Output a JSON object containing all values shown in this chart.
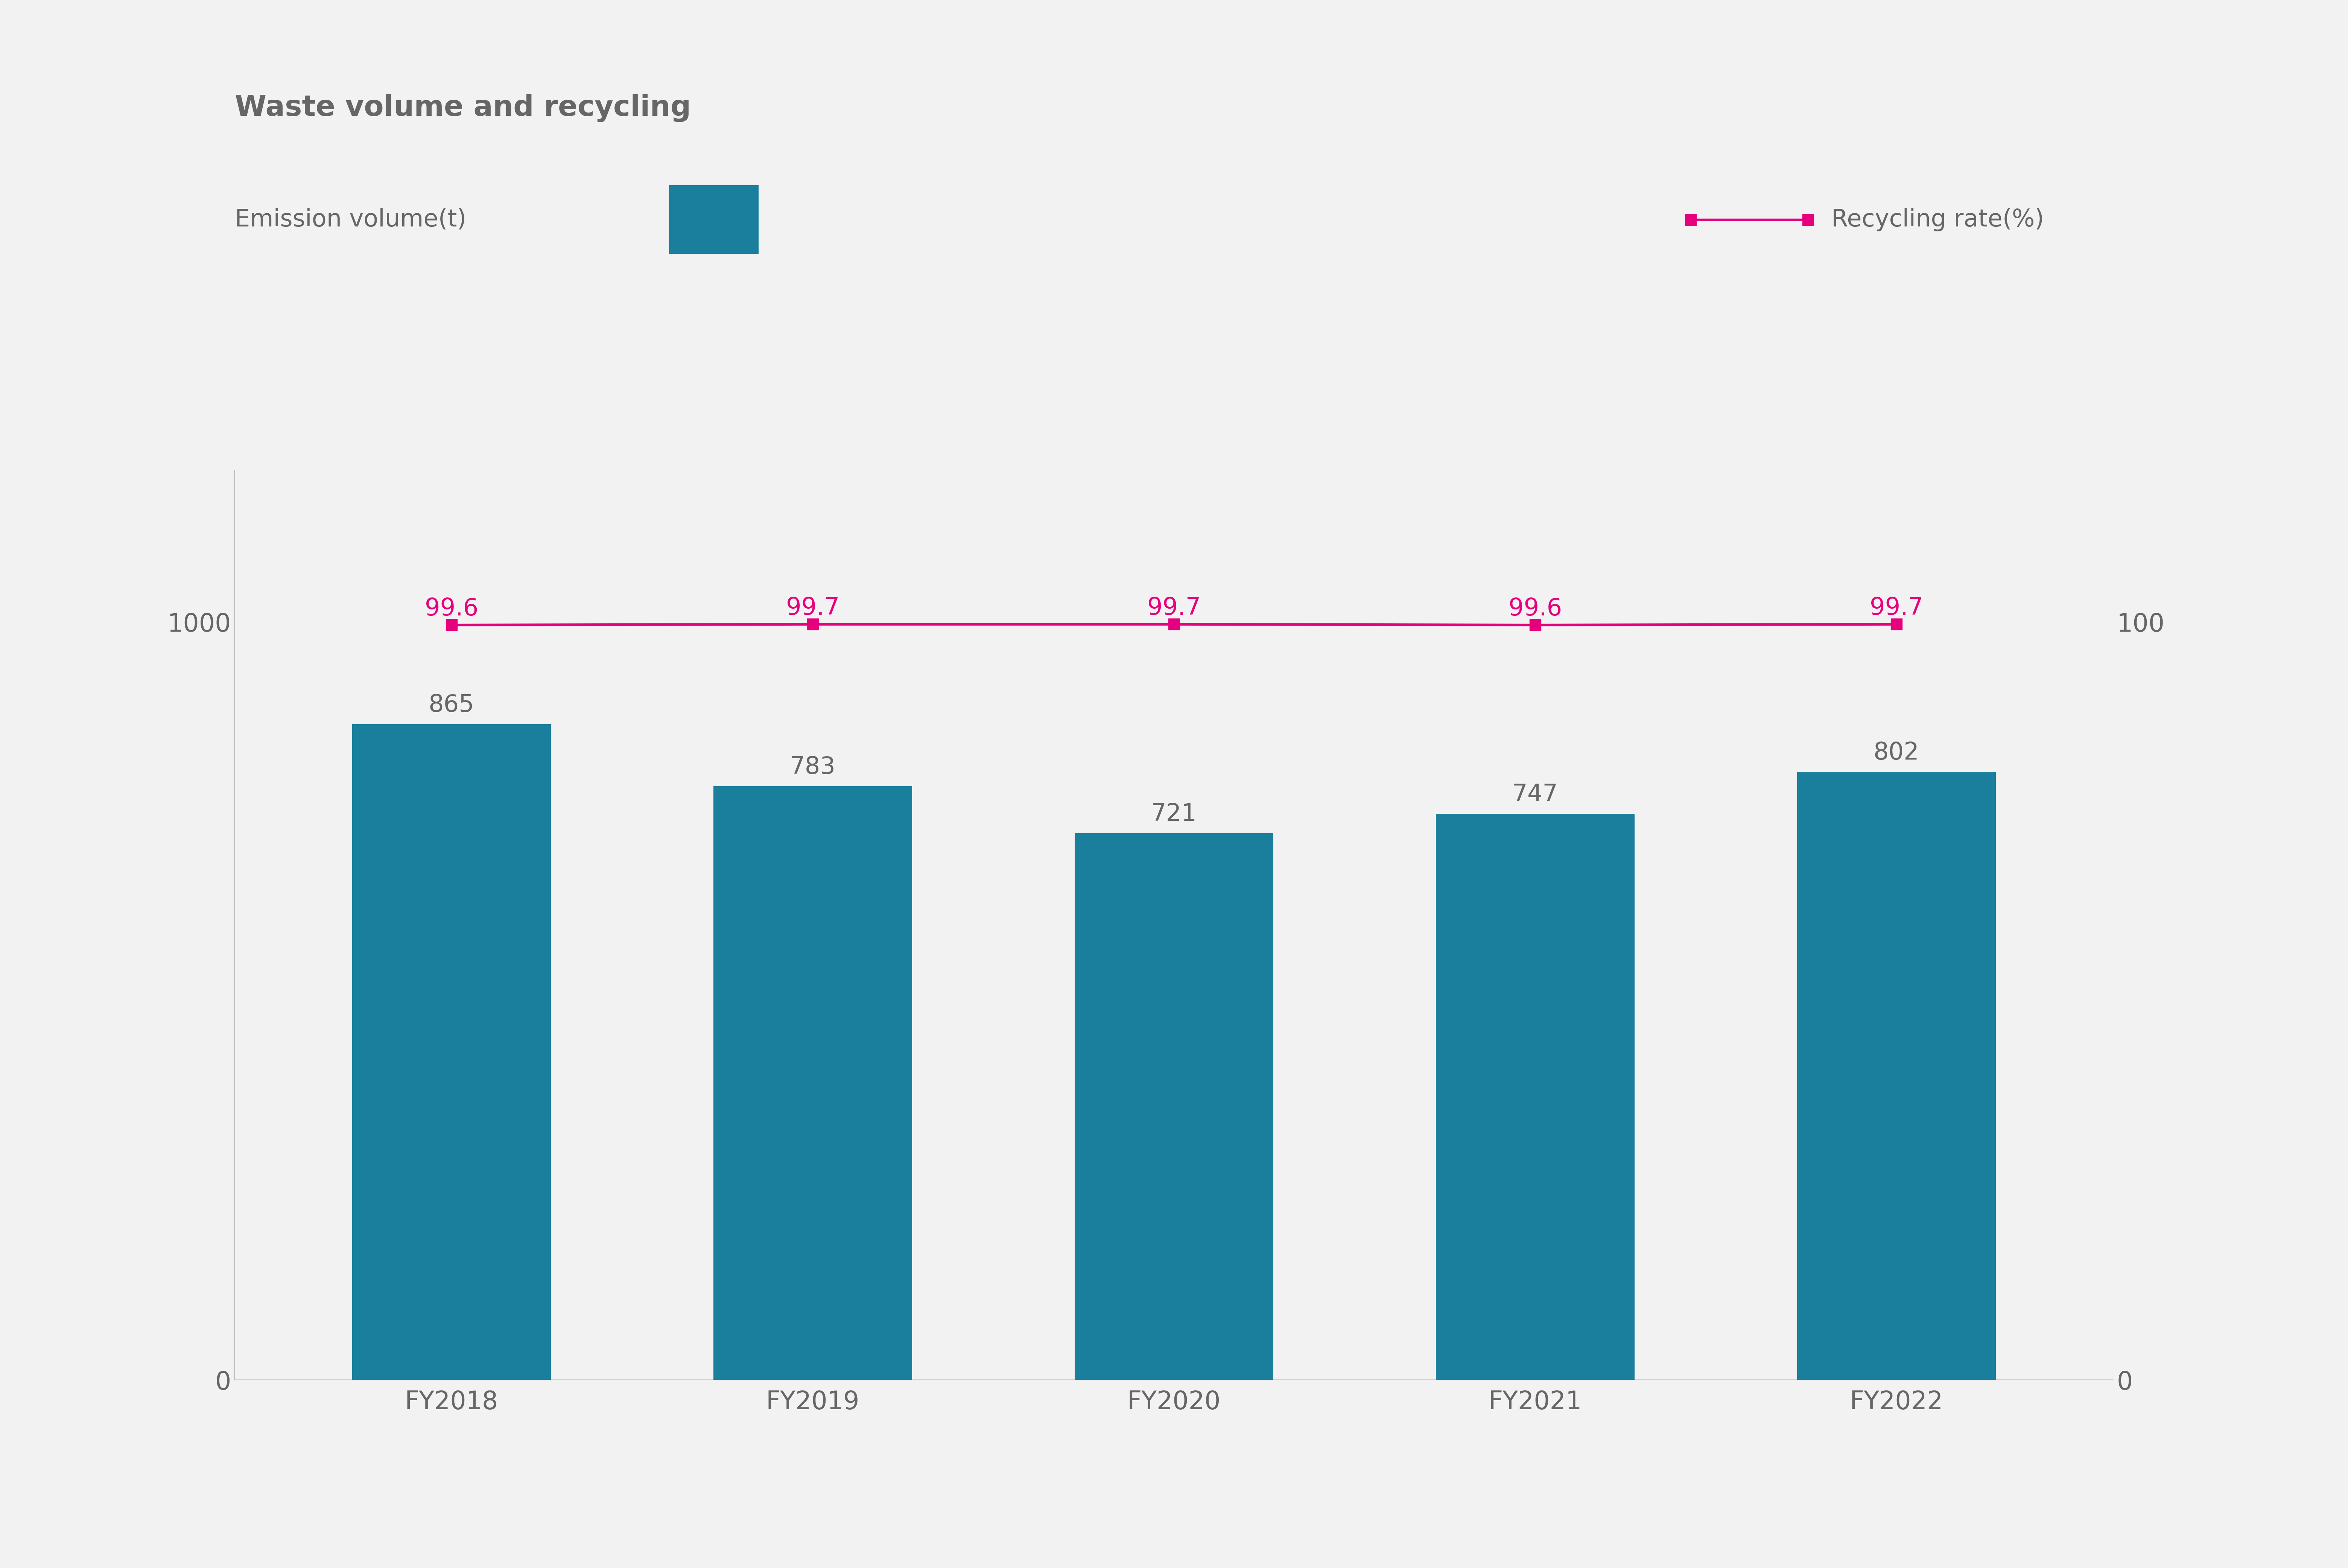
{
  "title": "Waste volume and recycling",
  "background_color": "#f2f2f2",
  "categories": [
    "FY2018",
    "FY2019",
    "FY2020",
    "FY2021",
    "FY2022"
  ],
  "bar_values": [
    865,
    783,
    721,
    747,
    802
  ],
  "bar_color": "#1a7f9c",
  "recycling_rates": [
    99.6,
    99.7,
    99.7,
    99.6,
    99.7
  ],
  "line_color": "#e6007e",
  "left_ylim": [
    0,
    1200
  ],
  "right_ylim": [
    0,
    120
  ],
  "left_yticks": [
    0,
    1000
  ],
  "right_yticks": [
    0,
    100
  ],
  "label_emission": "Emission volume(t)",
  "label_recycling": "Recycling rate(%)",
  "title_fontsize": 55,
  "axis_fontsize": 48,
  "bar_label_fontsize": 46,
  "line_label_fontsize": 46,
  "legend_fontsize": 46,
  "axis_label_color": "#666666",
  "spine_color": "#aaaaaa",
  "line_width": 5.0,
  "marker": "s",
  "marker_size": 22,
  "bar_width": 0.55
}
